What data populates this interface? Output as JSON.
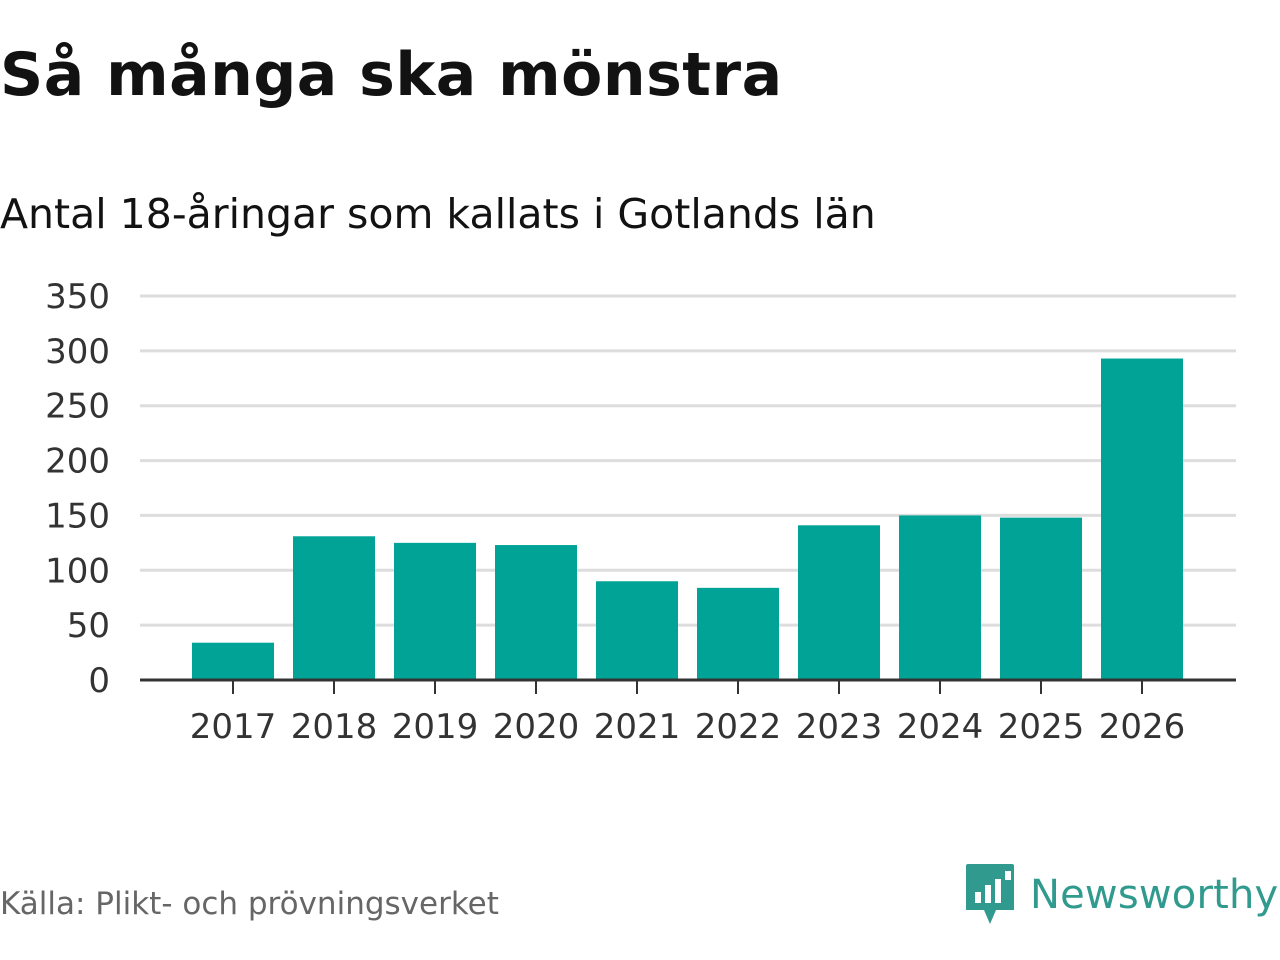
{
  "header": {
    "title": "Så många ska mönstra",
    "subtitle": "Antal 18-åringar som kallats i Gotlands län"
  },
  "footer": {
    "source": "Källa: Plikt- och prövningsverket",
    "brand": "Newsworthy"
  },
  "colors": {
    "bar": "#00a396",
    "grid": "#dddddd",
    "axis": "#333333",
    "brand": "#2f9a8d"
  },
  "chart_data": {
    "type": "bar",
    "title": "Så många ska mönstra",
    "subtitle": "Antal 18-åringar som kallats i Gotlands län",
    "xlabel": "",
    "ylabel": "",
    "categories": [
      "2017",
      "2018",
      "2019",
      "2020",
      "2021",
      "2022",
      "2023",
      "2024",
      "2025",
      "2026"
    ],
    "values": [
      34,
      131,
      125,
      123,
      90,
      84,
      141,
      150,
      148,
      293
    ],
    "ylim": [
      0,
      350
    ],
    "yticks": [
      0,
      50,
      100,
      150,
      200,
      250,
      300,
      350
    ],
    "grid": true,
    "legend": "none"
  }
}
